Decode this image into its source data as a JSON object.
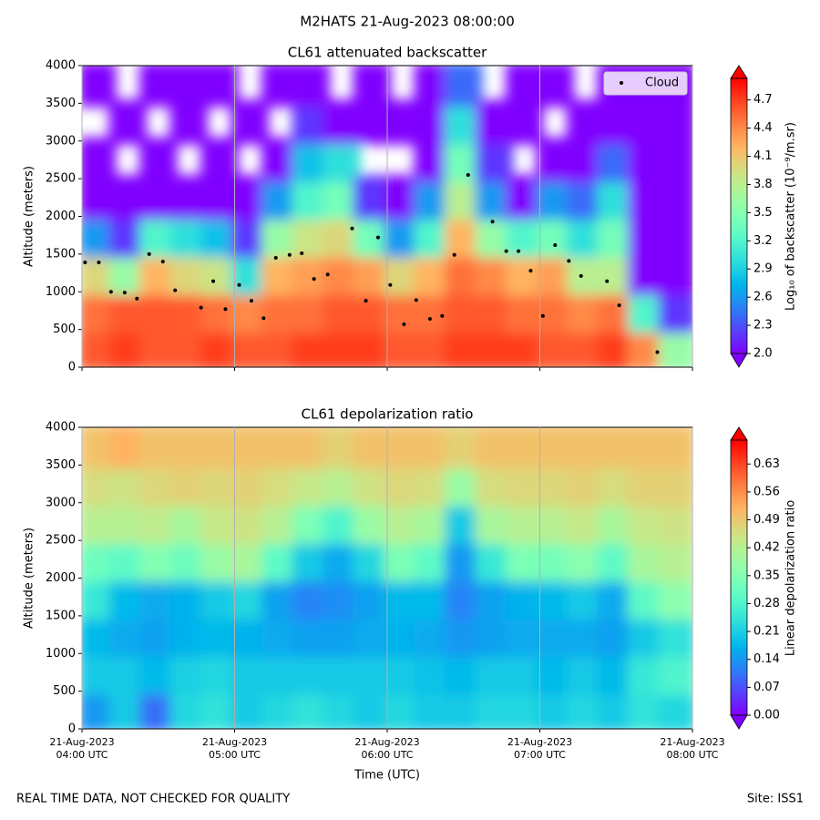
{
  "title": "M2HATS 21-Aug-2023 08:00:00",
  "footer": {
    "left": "REAL TIME DATA, NOT CHECKED FOR QUALITY",
    "right": "Site: ISS1"
  },
  "chart_data": [
    {
      "type": "contour",
      "title": "CL61 attenuated backscatter",
      "ylabel": "Altitude (meters)",
      "cmap": "rainbow",
      "grid": true,
      "legend": "upper right",
      "xlim": [
        4,
        8
      ],
      "xticks": [
        4,
        5,
        6,
        7,
        8
      ],
      "ylim": [
        0,
        4000
      ],
      "yticks": [
        0,
        500,
        1000,
        1500,
        2000,
        2500,
        3000,
        3500,
        4000
      ],
      "x_edges": [
        4.0,
        4.2,
        4.4,
        4.6,
        4.8,
        5.0,
        5.2,
        5.4,
        5.6,
        5.8,
        6.0,
        6.2,
        6.4,
        6.6,
        6.8,
        7.0,
        7.2,
        7.4,
        7.6,
        7.8,
        8.0
      ],
      "y_edges": [
        0,
        500,
        1000,
        1500,
        2000,
        2500,
        3000,
        3500,
        4000
      ],
      "z": [
        [
          4.6,
          4.5,
          4.0,
          2.6,
          2.0,
          2.0,
          null,
          2.0
        ],
        [
          4.7,
          4.6,
          3.6,
          2.2,
          2.0,
          null,
          2.0,
          null
        ],
        [
          4.6,
          4.6,
          4.2,
          3.2,
          2.0,
          2.0,
          null,
          2.0
        ],
        [
          4.6,
          4.6,
          4.0,
          3.0,
          2.0,
          null,
          2.0,
          2.0
        ],
        [
          4.7,
          4.5,
          3.9,
          2.8,
          2.0,
          2.0,
          null,
          2.0
        ],
        [
          4.6,
          4.4,
          3.0,
          2.2,
          2.0,
          null,
          2.0,
          null
        ],
        [
          4.6,
          4.5,
          4.2,
          3.6,
          2.6,
          2.0,
          null,
          2.0
        ],
        [
          4.7,
          4.5,
          4.3,
          3.9,
          3.2,
          2.8,
          2.2,
          2.0
        ],
        [
          4.7,
          4.6,
          4.4,
          4.0,
          3.4,
          3.0,
          2.0,
          null
        ],
        [
          4.7,
          4.6,
          4.3,
          3.4,
          2.2,
          null,
          2.0,
          2.0
        ],
        [
          4.6,
          4.5,
          4.0,
          2.6,
          2.0,
          null,
          2.0,
          null
        ],
        [
          4.6,
          4.5,
          4.2,
          3.2,
          2.6,
          2.0,
          2.0,
          2.0
        ],
        [
          4.7,
          4.6,
          4.5,
          4.2,
          3.8,
          3.4,
          3.0,
          2.4
        ],
        [
          4.7,
          4.6,
          4.4,
          3.6,
          2.6,
          2.2,
          2.0,
          null
        ],
        [
          4.7,
          4.5,
          4.2,
          3.2,
          2.0,
          null,
          2.0,
          2.0
        ],
        [
          4.6,
          4.5,
          4.3,
          3.4,
          2.6,
          2.0,
          null,
          2.0
        ],
        [
          4.6,
          4.4,
          3.8,
          3.0,
          2.4,
          2.0,
          2.0,
          null
        ],
        [
          4.7,
          4.5,
          3.8,
          3.4,
          3.0,
          2.4,
          2.0,
          2.0
        ],
        [
          4.4,
          3.2,
          2.0,
          2.0,
          2.0,
          2.0,
          2.0,
          2.0
        ],
        [
          3.6,
          2.2,
          2.0,
          2.0,
          2.0,
          2.0,
          2.0,
          2.0
        ]
      ],
      "clim": [
        2.0,
        4.93
      ],
      "colorbar_label": "Log₁₀ of backscatter (10⁻⁹/m.sr)",
      "colorbar_ticks": [
        {
          "value": 2,
          "label": "2.0"
        },
        2.3,
        2.6,
        2.9,
        3.2,
        3.5,
        3.8,
        4.1,
        4.4,
        4.7
      ],
      "series": [
        {
          "name": "Cloud",
          "color": "#000000",
          "x": [
            4.02,
            4.11,
            4.19,
            4.28,
            4.36,
            4.44,
            4.53,
            4.61,
            4.78,
            4.86,
            4.94,
            5.03,
            5.11,
            5.19,
            5.27,
            5.36,
            5.44,
            5.52,
            5.61,
            5.77,
            5.86,
            5.94,
            6.02,
            6.11,
            6.19,
            6.28,
            6.36,
            6.44,
            6.53,
            6.69,
            6.78,
            6.86,
            6.94,
            7.02,
            7.1,
            7.19,
            7.27,
            7.44,
            7.52,
            7.77
          ],
          "values": [
            1390,
            1390,
            1000,
            990,
            910,
            1500,
            1400,
            1020,
            790,
            1140,
            770,
            1090,
            880,
            650,
            1450,
            1490,
            1510,
            1170,
            1230,
            1840,
            880,
            1720,
            1090,
            570,
            890,
            640,
            680,
            1490,
            2550,
            1930,
            1540,
            1540,
            1280,
            680,
            1620,
            1410,
            1210,
            1140,
            820,
            200
          ]
        }
      ]
    },
    {
      "type": "contour",
      "title": "CL61 depolarization ratio",
      "ylabel": "Altitude (meters)",
      "xlabel": "Time (UTC)",
      "cmap": "rainbow",
      "grid": true,
      "xlim": [
        4,
        8
      ],
      "xticks": [
        {
          "value": 4,
          "label": "21-Aug-2023\n04:00 UTC"
        },
        {
          "value": 5,
          "label": "21-Aug-2023\n05:00 UTC"
        },
        {
          "value": 6,
          "label": "21-Aug-2023\n06:00 UTC"
        },
        {
          "value": 7,
          "label": "21-Aug-2023\n07:00 UTC"
        },
        {
          "value": 8,
          "label": "21-Aug-2023\n08:00 UTC"
        }
      ],
      "ylim": [
        0,
        4000
      ],
      "yticks": [
        0,
        500,
        1000,
        1500,
        2000,
        2500,
        3000,
        3500,
        4000
      ],
      "x_edges": [
        4.0,
        4.2,
        4.4,
        4.6,
        4.8,
        5.0,
        5.2,
        5.4,
        5.6,
        5.8,
        6.0,
        6.2,
        6.4,
        6.6,
        6.8,
        7.0,
        7.2,
        7.4,
        7.6,
        7.8,
        8.0
      ],
      "y_edges": [
        0,
        500,
        1000,
        1500,
        2000,
        2500,
        3000,
        3500,
        4000
      ],
      "z": [
        [
          0.14,
          0.2,
          0.18,
          0.25,
          0.32,
          0.42,
          0.46,
          0.5
        ],
        [
          0.2,
          0.2,
          0.16,
          0.18,
          0.3,
          0.42,
          0.45,
          0.52
        ],
        [
          0.1,
          0.18,
          0.15,
          0.16,
          0.35,
          0.43,
          0.47,
          0.5
        ],
        [
          0.22,
          0.21,
          0.17,
          0.17,
          0.32,
          0.4,
          0.48,
          0.5
        ],
        [
          0.24,
          0.22,
          0.18,
          0.2,
          0.38,
          0.44,
          0.47,
          0.5
        ],
        [
          0.2,
          0.2,
          0.17,
          0.22,
          0.4,
          0.45,
          0.48,
          0.5
        ],
        [
          0.22,
          0.2,
          0.16,
          0.15,
          0.3,
          0.42,
          0.46,
          0.5
        ],
        [
          0.24,
          0.2,
          0.15,
          0.12,
          0.2,
          0.34,
          0.44,
          0.5
        ],
        [
          0.22,
          0.2,
          0.15,
          0.13,
          0.16,
          0.28,
          0.42,
          0.48
        ],
        [
          0.2,
          0.2,
          0.16,
          0.15,
          0.22,
          0.38,
          0.45,
          0.5
        ],
        [
          0.22,
          0.2,
          0.17,
          0.18,
          0.34,
          0.42,
          0.47,
          0.5
        ],
        [
          0.2,
          0.19,
          0.16,
          0.18,
          0.3,
          0.4,
          0.46,
          0.5
        ],
        [
          0.2,
          0.18,
          0.14,
          0.12,
          0.14,
          0.2,
          0.38,
          0.48
        ],
        [
          0.22,
          0.2,
          0.15,
          0.15,
          0.25,
          0.4,
          0.46,
          0.5
        ],
        [
          0.22,
          0.2,
          0.16,
          0.17,
          0.34,
          0.42,
          0.47,
          0.5
        ],
        [
          0.2,
          0.18,
          0.16,
          0.18,
          0.33,
          0.42,
          0.47,
          0.5
        ],
        [
          0.22,
          0.2,
          0.16,
          0.2,
          0.36,
          0.44,
          0.48,
          0.5
        ],
        [
          0.2,
          0.18,
          0.15,
          0.16,
          0.3,
          0.4,
          0.46,
          0.5
        ],
        [
          0.24,
          0.25,
          0.2,
          0.3,
          0.4,
          0.44,
          0.48,
          0.5
        ],
        [
          0.22,
          0.28,
          0.24,
          0.36,
          0.42,
          0.45,
          0.48,
          0.5
        ]
      ],
      "clim": [
        0,
        0.69
      ],
      "colorbar_label": "Linear depolarization ratio",
      "colorbar_ticks": [
        {
          "value": 0,
          "label": "0.00"
        },
        0.07,
        0.14,
        0.21,
        0.28,
        0.35,
        0.42,
        0.49,
        0.56,
        0.63
      ]
    }
  ]
}
